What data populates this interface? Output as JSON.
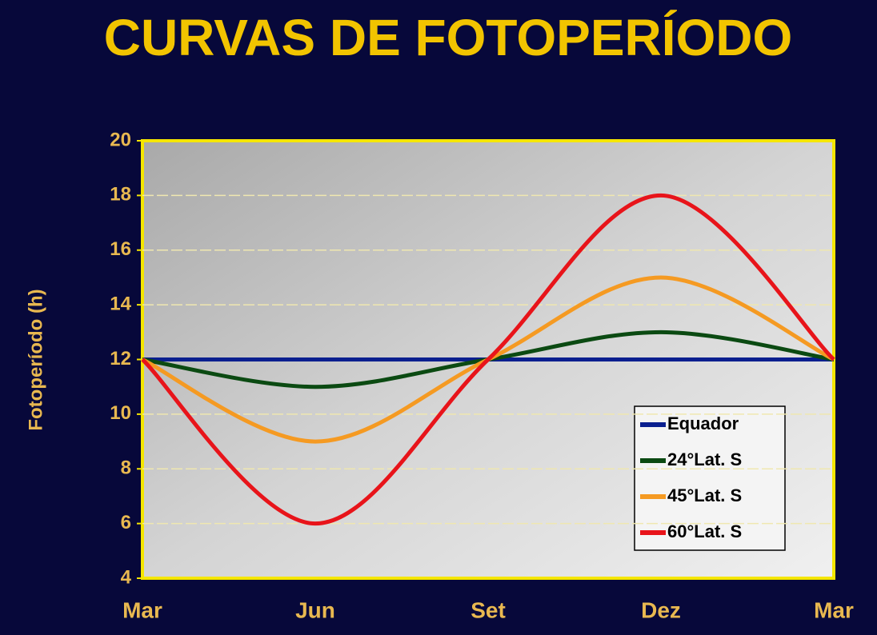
{
  "chart_data": {
    "type": "line",
    "title": "CURVAS DE FOTOPERÍODO",
    "y_label": "Fotoperíodo (h)",
    "categories": [
      "Mar",
      "Jun",
      "Set",
      "Dez",
      "Mar"
    ],
    "series": [
      {
        "name": "Equador",
        "color": "#0a1f8f",
        "values": [
          12,
          12,
          12,
          12,
          12
        ]
      },
      {
        "name": "24°Lat. S",
        "color": "#0b4a12",
        "values": [
          12,
          11,
          12,
          13,
          12
        ]
      },
      {
        "name": "45°Lat. S",
        "color": "#f59a22",
        "values": [
          12,
          9,
          12,
          15,
          12
        ]
      },
      {
        "name": "60°Lat. S",
        "color": "#e8141a",
        "values": [
          12,
          6,
          12,
          18,
          12
        ]
      }
    ],
    "ylim": [
      4,
      20
    ],
    "yticks": [
      4,
      6,
      8,
      10,
      12,
      14,
      16,
      18,
      20
    ],
    "grid": true,
    "legend": "lower right"
  }
}
